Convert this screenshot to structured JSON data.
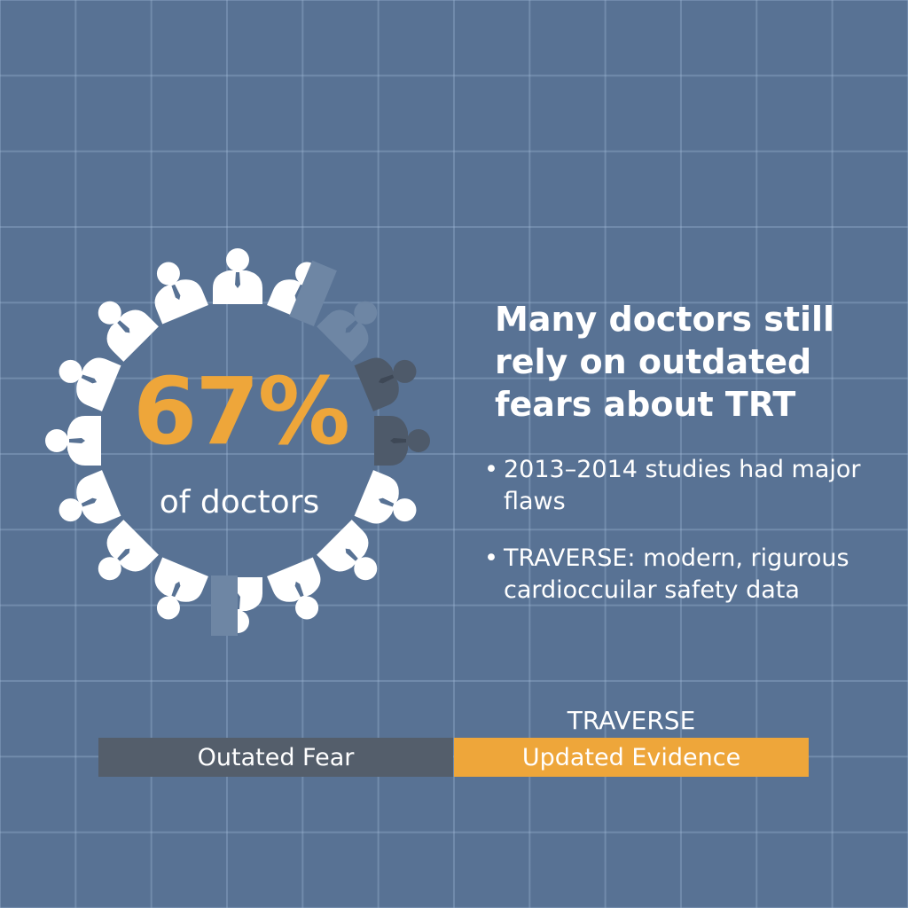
{
  "stat": {
    "value": "67%",
    "label": "of doctors",
    "fraction": 0.67
  },
  "ring": {
    "icon": "doctor-icon",
    "states": [
      "white",
      "half",
      "faded",
      "dark",
      "dark",
      "white",
      "white",
      "white",
      "half",
      "white",
      "white",
      "white",
      "white",
      "white",
      "white",
      "white"
    ]
  },
  "headline": "Many doctors still rely on outdated fears about TRT",
  "bullets": [
    {
      "text": "2013–2014 studies had major flaws"
    },
    {
      "text": "TRAVERSE: modern, rigurous cardioccuilar safety data"
    }
  ],
  "comparison": {
    "label_above": "TRAVERSE",
    "left": "Outated Fear",
    "right": "Updated Evidence"
  },
  "colors": {
    "background": "#587294",
    "accent": "#eea63a",
    "dark": "#545e6b",
    "white": "#ffffff"
  }
}
